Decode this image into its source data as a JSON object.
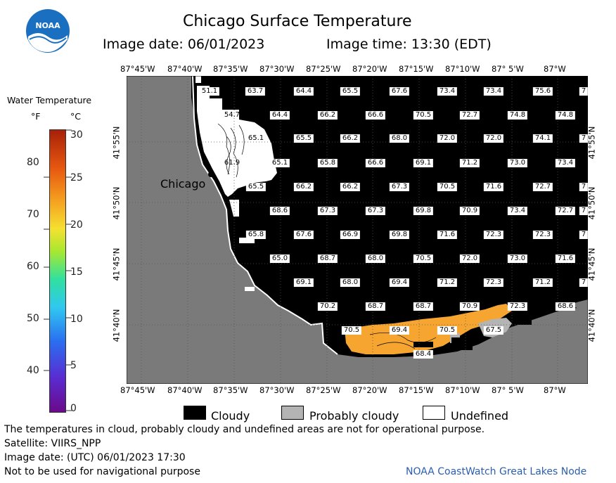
{
  "header": {
    "title": "Chicago Surface Temperature",
    "image_date": "Image date: 06/01/2023",
    "image_time": "Image time: 13:30 (EDT)"
  },
  "logo": {
    "text": "NOAA"
  },
  "colorbar": {
    "title": "Water Temperature",
    "unit_f": "°F",
    "unit_c": "°C",
    "f_ticks": [
      "40",
      "50",
      "60",
      "70",
      "80"
    ],
    "c_ticks": [
      "0",
      "5",
      "10",
      "15",
      "20",
      "25",
      "30"
    ]
  },
  "map": {
    "lon_labels": [
      "87°45'W",
      "87°40'W",
      "87°35'W",
      "87°30'W",
      "87°25'W",
      "87°20'W",
      "87°15'W",
      "87°10'W",
      "87° 5'W",
      "87°W"
    ],
    "lat_labels": [
      "41°55'N",
      "41°50'N",
      "41°45'N",
      "41°40'N"
    ],
    "city_label": "Chicago",
    "temperature_values": [
      [
        "51.1",
        "63.7",
        "64.4",
        "65.5",
        "67.6",
        "73.4",
        "73.4",
        "75.6",
        "7"
      ],
      [
        "54.7",
        "64.4",
        "66.2",
        "66.6",
        "70.5",
        "72.7",
        "74.8",
        "74.8"
      ],
      [
        "65.1",
        "65.5",
        "66.2",
        "68.0",
        "72.0",
        "72.0",
        "74.1",
        "7"
      ],
      [
        "61.9",
        "65.1",
        "65.8",
        "66.6",
        "69.1",
        "71.2",
        "73.0",
        "73.4"
      ],
      [
        "65.5",
        "66.2",
        "66.2",
        "67.3",
        "70.5",
        "71.6",
        "72.7",
        "7"
      ],
      [
        "68.6",
        "67.3",
        "67.3",
        "69.8",
        "70.9",
        "73.4",
        "72.7",
        "7"
      ],
      [
        "65.8",
        "67.6",
        "66.9",
        "69.8",
        "71.6",
        "72.3",
        "72.3",
        "7"
      ],
      [
        "65.0",
        "68.7",
        "68.0",
        "70.5",
        "72.0",
        "73.0",
        "71.6"
      ],
      [
        "69.1",
        "68.0",
        "69.4",
        "71.2",
        "72.3",
        "71.2",
        "7"
      ],
      [
        "70.2",
        "68.7",
        "68.7",
        "70.9",
        "72.3",
        "68.6"
      ],
      [
        "70.5",
        "69.4",
        "70.5",
        "67.5"
      ],
      [
        "68.4"
      ]
    ]
  },
  "legend": {
    "cloudy": "Cloudy",
    "probably_cloudy": "Probably cloudy",
    "undefined": "Undefined"
  },
  "footer": {
    "note": "The temperatures in cloud, probably cloudy and undefined areas are not for operational purpose.",
    "satellite": "Satellite: VIIRS_NPP",
    "utc_date": "Image date: (UTC) 06/01/2023  17:30",
    "nav_warning": "Not to be used for navigational purpose",
    "credit": "NOAA CoastWatch Great Lakes Node"
  },
  "colors": {
    "land": "#7a7a7a",
    "cloud": "#000000",
    "probably_cloudy": "#b4b4b4",
    "undefined": "#ffffff",
    "warm_water": "#f5a530",
    "credit": "#2a5fb0"
  }
}
